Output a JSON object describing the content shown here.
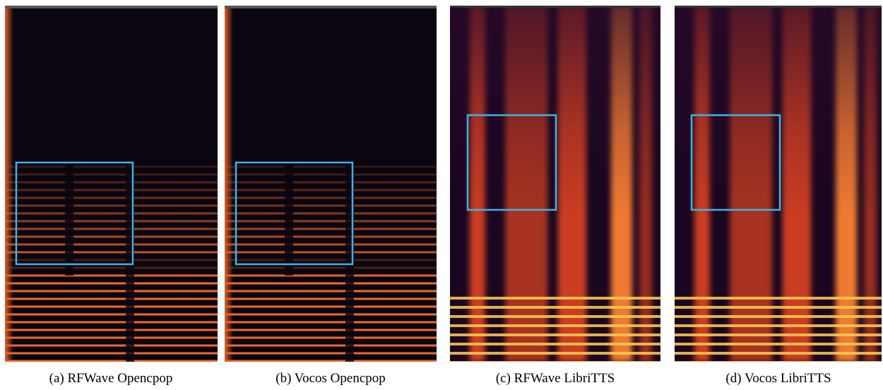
{
  "figure": {
    "panels": [
      {
        "caption": "(a) RFWave Opencpop"
      },
      {
        "caption": "(b) Vocos Opencpop"
      },
      {
        "caption": "(c) RFWave LibriTTS"
      },
      {
        "caption": "(d) Vocos LibriTTS"
      }
    ]
  }
}
